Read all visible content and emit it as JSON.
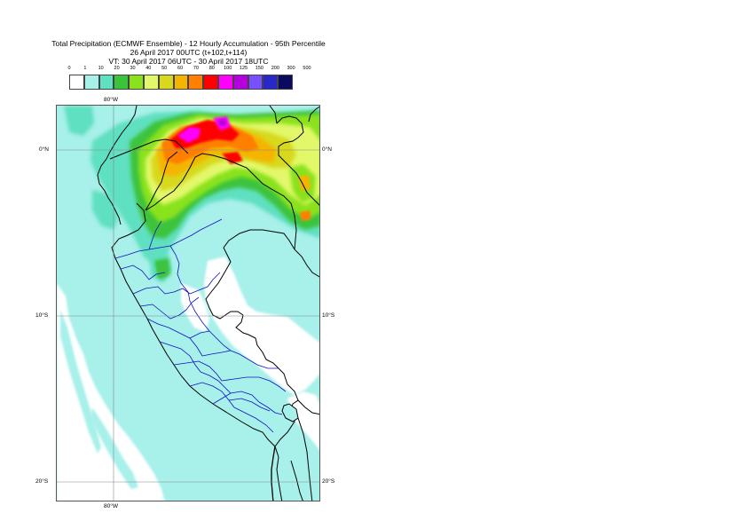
{
  "title": {
    "line1": "Total Precipitation (ECMWF Ensemble) - 12 Hourly Accumulation - 95th Percentile",
    "line2": "26 April 2017 00UTC (t+102,t+114)",
    "line3": "VT: 30 April 2017 06UTC - 30 April 2017 18UTC"
  },
  "legend": {
    "labels": [
      "0",
      "1",
      "10",
      "20",
      "30",
      "40",
      "50",
      "60",
      "70",
      "80",
      "100",
      "125",
      "150",
      "200",
      "300",
      "500"
    ],
    "colors": [
      "#ffffff",
      "#a8f0ea",
      "#5fe0c0",
      "#3cc33c",
      "#8ae21c",
      "#e2f86a",
      "#d8d81e",
      "#f5b400",
      "#ff7f00",
      "#ff0000",
      "#ff00ff",
      "#b400dc",
      "#7850ff",
      "#2828c8",
      "#0a0a60"
    ]
  },
  "axes": {
    "lon_top": "80°W",
    "lon_bottom": "80°W",
    "lat_left": [
      "0°N",
      "10°S",
      "20°S"
    ],
    "lat_right": [
      "0°N",
      "10°S",
      "20°S"
    ]
  }
}
